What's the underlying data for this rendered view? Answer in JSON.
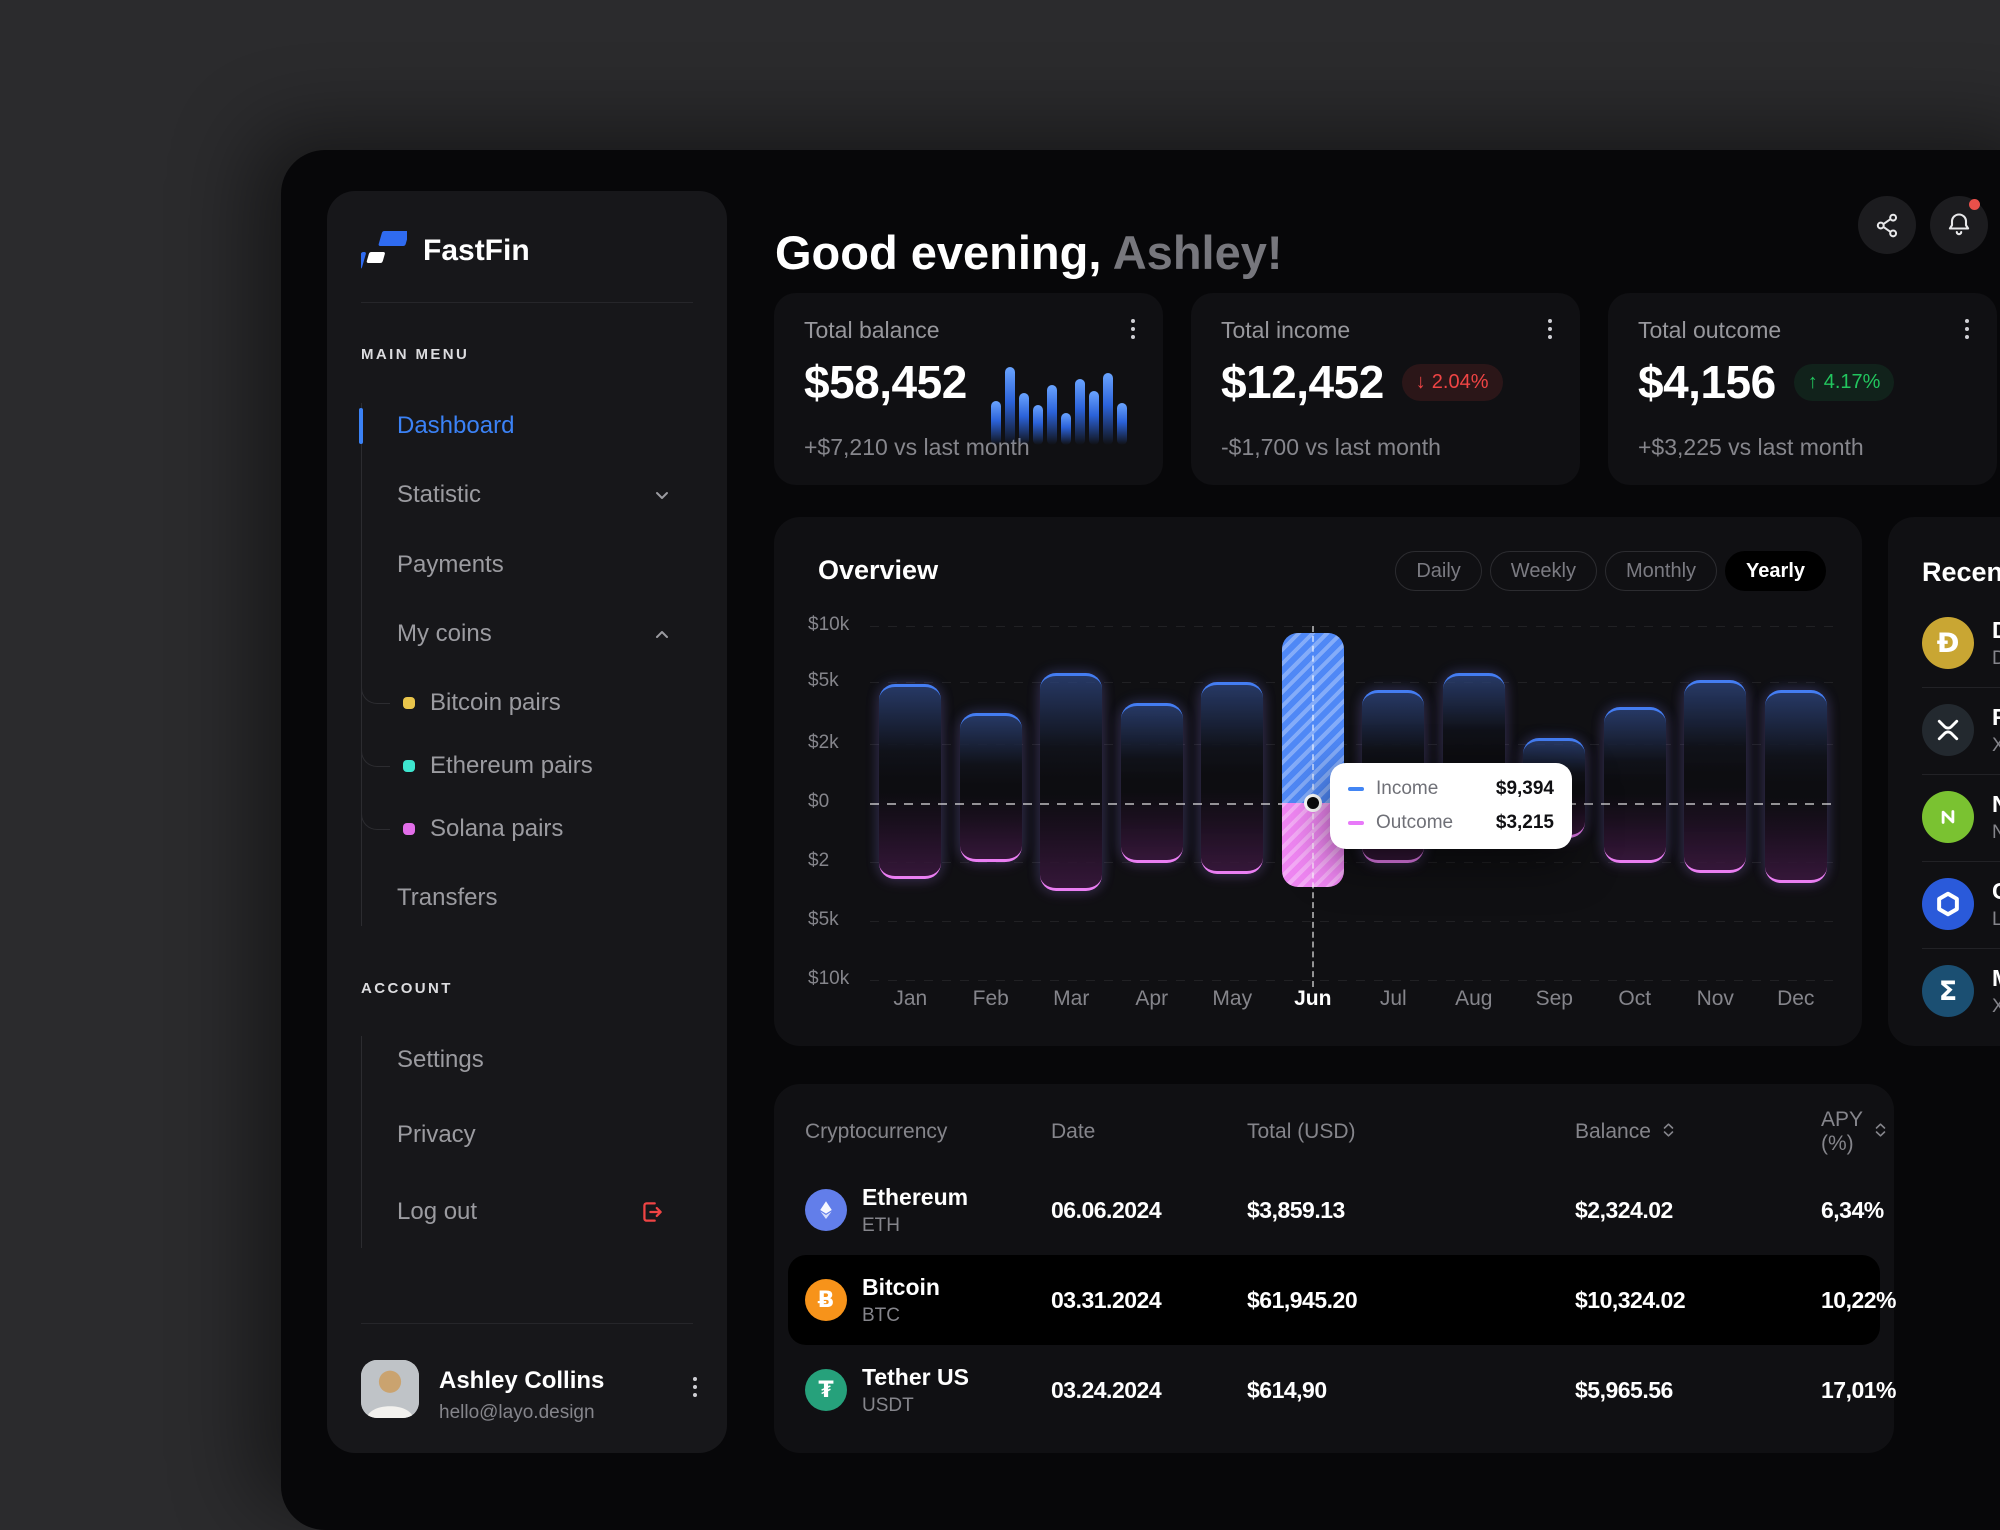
{
  "sidebar": {
    "brand": "FastFin",
    "sections": [
      {
        "label": "MAIN MENU"
      },
      {
        "label": "ACCOUNT"
      }
    ],
    "menu": [
      {
        "label": "Dashboard",
        "active": true
      },
      {
        "label": "Statistic",
        "chevron": "down"
      },
      {
        "label": "Payments"
      },
      {
        "label": "My coins",
        "chevron": "up"
      },
      {
        "label": "Bitcoin pairs",
        "sub": true,
        "bullet": "#e9c54b"
      },
      {
        "label": "Ethereum pairs",
        "sub": true,
        "bullet": "#3ee6cf"
      },
      {
        "label": "Solana pairs",
        "sub": true,
        "bullet": "#e26ee9"
      },
      {
        "label": "Transfers"
      }
    ],
    "account_menu": [
      {
        "label": "Settings"
      },
      {
        "label": "Privacy"
      },
      {
        "label": "Log out",
        "icon": "logout"
      }
    ],
    "user": {
      "name": "Ashley Collins",
      "email": "hello@layo.design"
    }
  },
  "header": {
    "greeting": "Good evening, ",
    "user": "Ashley!"
  },
  "topbar": {
    "icons": [
      "share",
      "bell"
    ],
    "bell_has_badge": true
  },
  "stat_cards": [
    {
      "title": "Total balance",
      "value": "$58,452",
      "sub": "+$7,210 vs last month",
      "spark": [
        44,
        78,
        52,
        40,
        60,
        32,
        66,
        54,
        72,
        42
      ]
    },
    {
      "title": "Total income",
      "value": "$12,452",
      "badge": {
        "dir": "down",
        "arrow": "↓",
        "label": "2.04%",
        "color": "#ef4444"
      },
      "sub": "-$1,700 vs last month"
    },
    {
      "title": "Total outcome",
      "value": "$4,156",
      "badge": {
        "dir": "up",
        "arrow": "↑",
        "label": "4.17%",
        "color": "#22c55e"
      },
      "sub": "+$3,225 vs last month"
    }
  ],
  "overview": {
    "title": "Overview",
    "tabs": [
      "Daily",
      "Weekly",
      "Monthly",
      "Yearly"
    ],
    "active_tab": "Yearly"
  },
  "chart_data": {
    "type": "bar",
    "categories": [
      "Jan",
      "Feb",
      "Mar",
      "Apr",
      "May",
      "Jun",
      "Jul",
      "Aug",
      "Sep",
      "Oct",
      "Nov",
      "Dec"
    ],
    "series": [
      {
        "name": "Income",
        "color": "#4285f4",
        "values": [
          4900,
          3500,
          5800,
          4000,
          5000,
          9394,
          4600,
          5800,
          2300,
          3800,
          5200,
          4600
        ]
      },
      {
        "name": "Outcome",
        "color": "#e879f9",
        "values": [
          2800,
          2000,
          3400,
          2050,
          2600,
          3215,
          2050,
          1200,
          1200,
          2050,
          2550,
          3000
        ]
      }
    ],
    "y_ticks": [
      "$10k",
      "$5k",
      "$2k",
      "$0",
      "$2",
      "$5k",
      "$10k"
    ],
    "ylim": [
      -10000,
      10000
    ],
    "grid": true,
    "highlight": "Jun",
    "tooltip": {
      "rows": [
        {
          "label": "Income",
          "value": "$9,394",
          "color": "#4285f4"
        },
        {
          "label": "Outcome",
          "value": "$3,215",
          "color": "#e879f9"
        }
      ]
    }
  },
  "recent": {
    "title": "Recent",
    "items": [
      {
        "name": "Dogecoin",
        "ticker": "DOGE",
        "color": "#c9a633",
        "glyph": "Đ"
      },
      {
        "name": "Ripple",
        "ticker": "XRP",
        "color": "#23292f",
        "glyph": "xrp"
      },
      {
        "name": "NULS",
        "ticker": "NULS",
        "color": "#7ac231",
        "glyph": "nuls"
      },
      {
        "name": "Chainlink",
        "ticker": "LINK",
        "color": "#2a5ada",
        "glyph": "link"
      },
      {
        "name": "Monero",
        "ticker": "XMR",
        "color": "#1b4f72",
        "glyph": "Σ"
      }
    ]
  },
  "table": {
    "columns": [
      {
        "label": "Cryptocurrency"
      },
      {
        "label": "Date"
      },
      {
        "label": "Total (USD)"
      },
      {
        "label": "Balance",
        "sortable": true
      },
      {
        "label": "APY (%)",
        "sortable": true
      }
    ],
    "rows": [
      {
        "name": "Ethereum",
        "ticker": "ETH",
        "icon_color": "#627eea",
        "glyph": "eth",
        "date": "06.06.2024",
        "total": "$3,859.13",
        "balance": "$2,324.02",
        "apy": "6,34%",
        "highlight": false
      },
      {
        "name": "Bitcoin",
        "ticker": "BTC",
        "icon_color": "#f7931a",
        "glyph": "Ƀ",
        "date": "03.31.2024",
        "total": "$61,945.20",
        "balance": "$10,324.02",
        "apy": "10,22%",
        "highlight": true
      },
      {
        "name": "Tether US",
        "ticker": "USDT",
        "icon_color": "#26a17b",
        "glyph": "₮",
        "date": "03.24.2024",
        "total": "$614,90",
        "balance": "$5,965.56",
        "apy": "17,01%",
        "highlight": false
      }
    ]
  }
}
